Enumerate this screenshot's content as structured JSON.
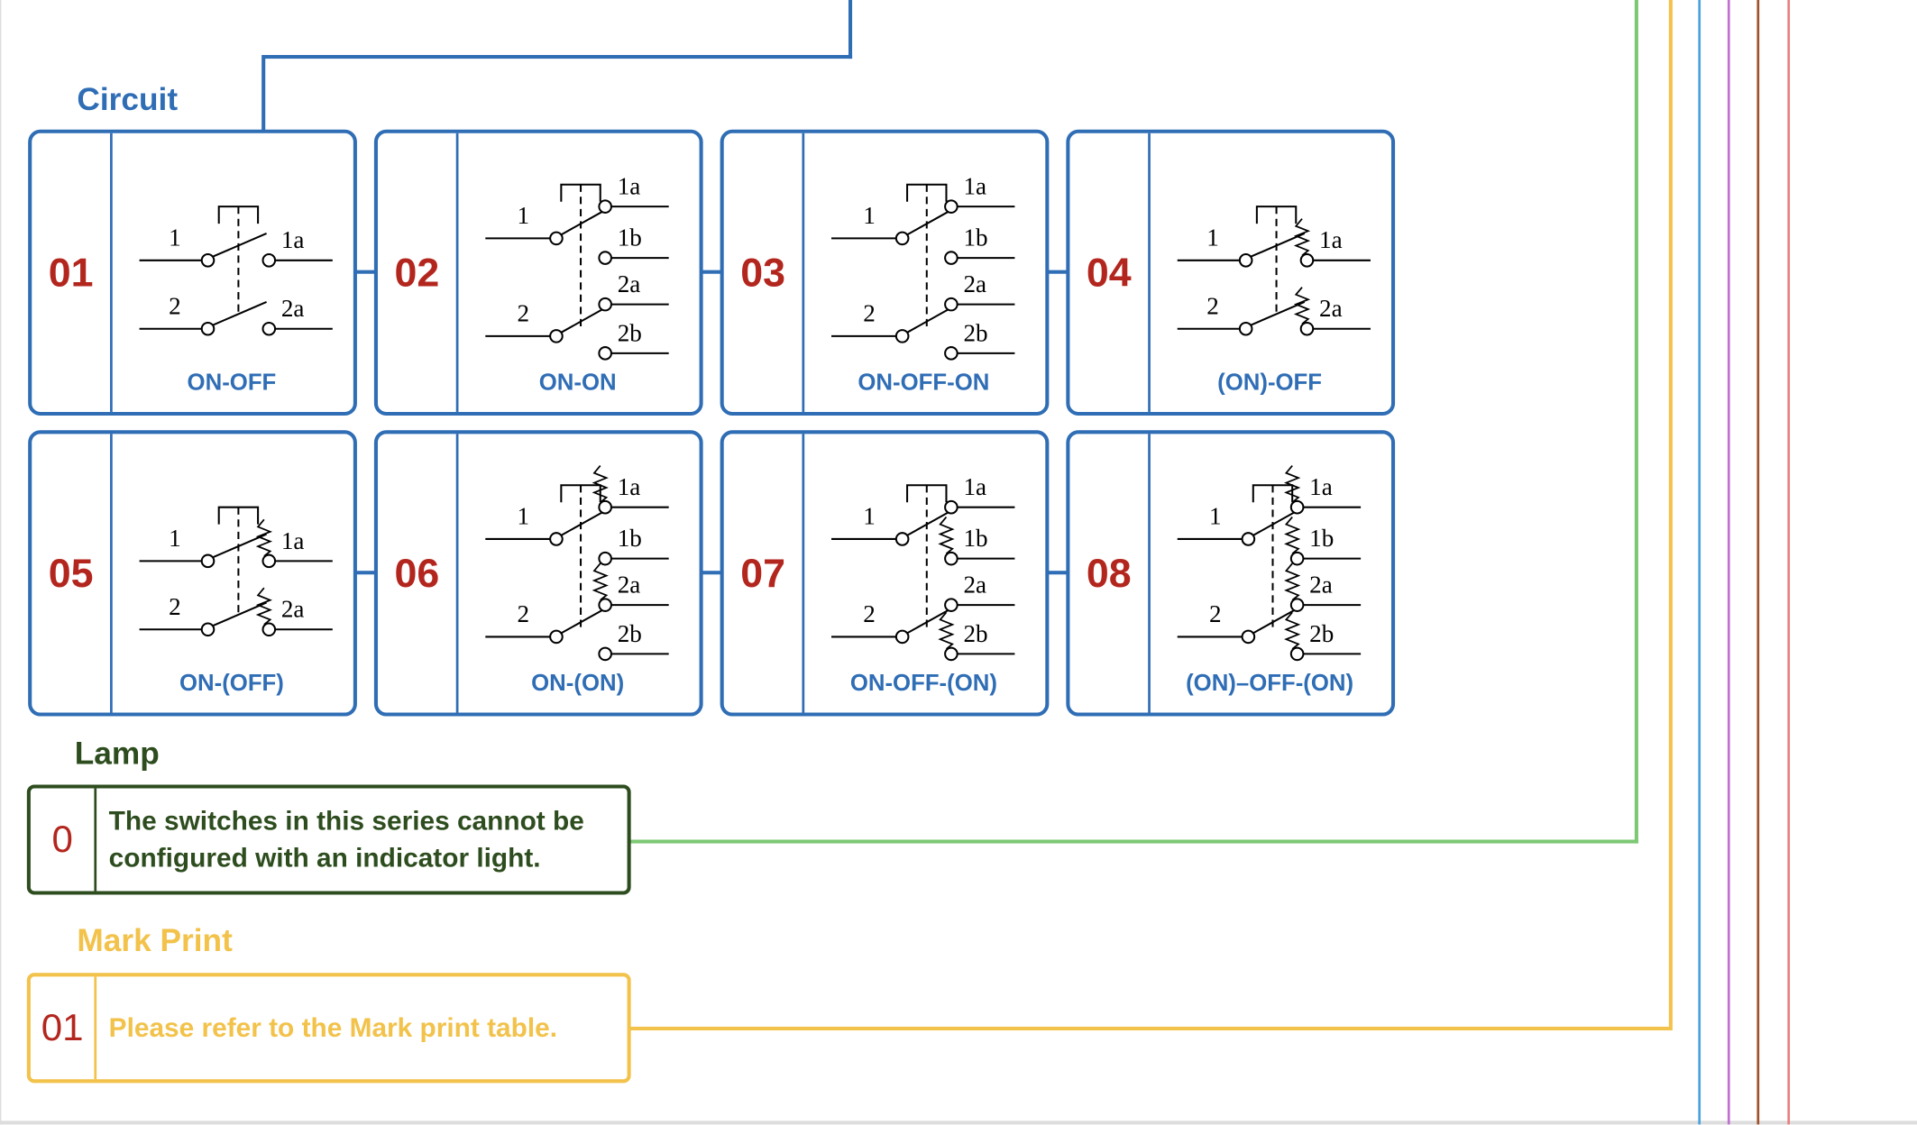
{
  "colors": {
    "circuit": "#2f6db5",
    "number": "#b3261e",
    "lamp": "#2e4d1f",
    "lamp_line": "#7dc873",
    "mark": "#f2c24a",
    "line_blue": "#4aa3df",
    "line_purple": "#c070d0",
    "line_brown": "#a0522d",
    "line_salmon": "#e88080"
  },
  "circuit": {
    "title": "Circuit",
    "items": [
      {
        "number": "01",
        "caption": "ON-OFF",
        "poles": [
          {
            "common": "1",
            "outputs": [
              "1a"
            ]
          },
          {
            "common": "2",
            "outputs": [
              "2a"
            ]
          }
        ],
        "springs": []
      },
      {
        "number": "02",
        "caption": "ON-ON",
        "poles": [
          {
            "common": "1",
            "outputs": [
              "1a",
              "1b"
            ]
          },
          {
            "common": "2",
            "outputs": [
              "2a",
              "2b"
            ]
          }
        ],
        "springs": []
      },
      {
        "number": "03",
        "caption": "ON-OFF-ON",
        "poles": [
          {
            "common": "1",
            "outputs": [
              "1a",
              "1b"
            ]
          },
          {
            "common": "2",
            "outputs": [
              "2a",
              "2b"
            ]
          }
        ],
        "springs": []
      },
      {
        "number": "04",
        "caption": "(ON)-OFF",
        "poles": [
          {
            "common": "1",
            "outputs": [
              "1a"
            ]
          },
          {
            "common": "2",
            "outputs": [
              "2a"
            ]
          }
        ],
        "springs": [
          "1a",
          "2a"
        ]
      },
      {
        "number": "05",
        "caption": "ON-(OFF)",
        "poles": [
          {
            "common": "1",
            "outputs": [
              "1a"
            ]
          },
          {
            "common": "2",
            "outputs": [
              "2a"
            ]
          }
        ],
        "springs": [
          "1a",
          "2a"
        ]
      },
      {
        "number": "06",
        "caption": "ON-(ON)",
        "poles": [
          {
            "common": "1",
            "outputs": [
              "1a",
              "1b"
            ]
          },
          {
            "common": "2",
            "outputs": [
              "2a",
              "2b"
            ]
          }
        ],
        "springs": [
          "1a",
          "2a"
        ]
      },
      {
        "number": "07",
        "caption": "ON-OFF-(ON)",
        "poles": [
          {
            "common": "1",
            "outputs": [
              "1a",
              "1b"
            ]
          },
          {
            "common": "2",
            "outputs": [
              "2a",
              "2b"
            ]
          }
        ],
        "springs": [
          "1b",
          "2b"
        ]
      },
      {
        "number": "08",
        "caption": "(ON)–OFF-(ON)",
        "poles": [
          {
            "common": "1",
            "outputs": [
              "1a",
              "1b"
            ]
          },
          {
            "common": "2",
            "outputs": [
              "2a",
              "2b"
            ]
          }
        ],
        "springs": [
          "1a",
          "1b",
          "2a",
          "2b"
        ]
      }
    ]
  },
  "lamp": {
    "title": "Lamp",
    "number": "0",
    "text": "The switches in this series cannot be configured with an indicator light."
  },
  "mark_print": {
    "title": "Mark Print",
    "number": "01",
    "text": "Please refer to the Mark print table."
  }
}
